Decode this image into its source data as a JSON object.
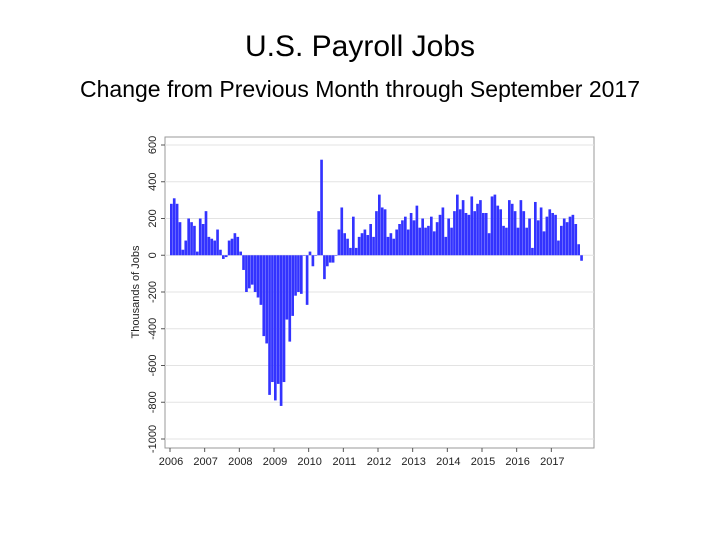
{
  "slide": {
    "title": "U.S. Payroll Jobs",
    "subtitle": "Change from Previous Month through September 2017"
  },
  "chart_data": {
    "type": "bar",
    "ylabel": "Thousands of Jobs",
    "xlabel": "",
    "ylim": [
      -1000,
      600
    ],
    "yticks": [
      -1000,
      -800,
      -600,
      -400,
      -200,
      0,
      200,
      400,
      600
    ],
    "xlim": [
      "2006-01",
      "2017-12"
    ],
    "xticks": [
      "2006",
      "2007",
      "2008",
      "2009",
      "2010",
      "2011",
      "2012",
      "2013",
      "2014",
      "2015",
      "2016",
      "2017"
    ],
    "grid": true,
    "bar_color": "#3333ff",
    "series": [
      {
        "start": "2006-01",
        "frequency": "monthly",
        "values": [
          280,
          310,
          280,
          180,
          30,
          80,
          200,
          180,
          160,
          20,
          200,
          170,
          240,
          100,
          90,
          80,
          140,
          30,
          -20,
          -10,
          80,
          90,
          120,
          100,
          20,
          -80,
          -200,
          -180,
          -160,
          -200,
          -230,
          -270,
          -440,
          -480,
          -760,
          -690,
          -790,
          -700,
          -820,
          -690,
          -350,
          -470,
          -330,
          -220,
          -200,
          -210,
          0,
          -270,
          20,
          -60,
          0,
          240,
          520,
          -130,
          -60,
          -40,
          -40,
          0,
          140,
          260,
          120,
          90,
          40,
          210,
          40,
          100,
          120,
          140,
          110,
          170,
          100,
          240,
          330,
          260,
          250,
          100,
          120,
          90,
          140,
          170,
          190,
          210,
          140,
          230,
          190,
          270,
          150,
          200,
          150,
          160,
          210,
          130,
          180,
          220,
          260,
          100,
          200,
          150,
          240,
          330,
          250,
          300,
          230,
          220,
          320,
          240,
          280,
          300,
          230,
          230,
          120,
          320,
          330,
          270,
          250,
          160,
          150,
          300,
          280,
          240,
          150,
          300,
          240,
          150,
          200,
          40,
          290,
          190,
          260,
          130,
          210,
          250,
          230,
          220,
          80,
          160,
          200,
          180,
          210,
          220,
          170,
          60,
          -30
        ]
      }
    ]
  }
}
